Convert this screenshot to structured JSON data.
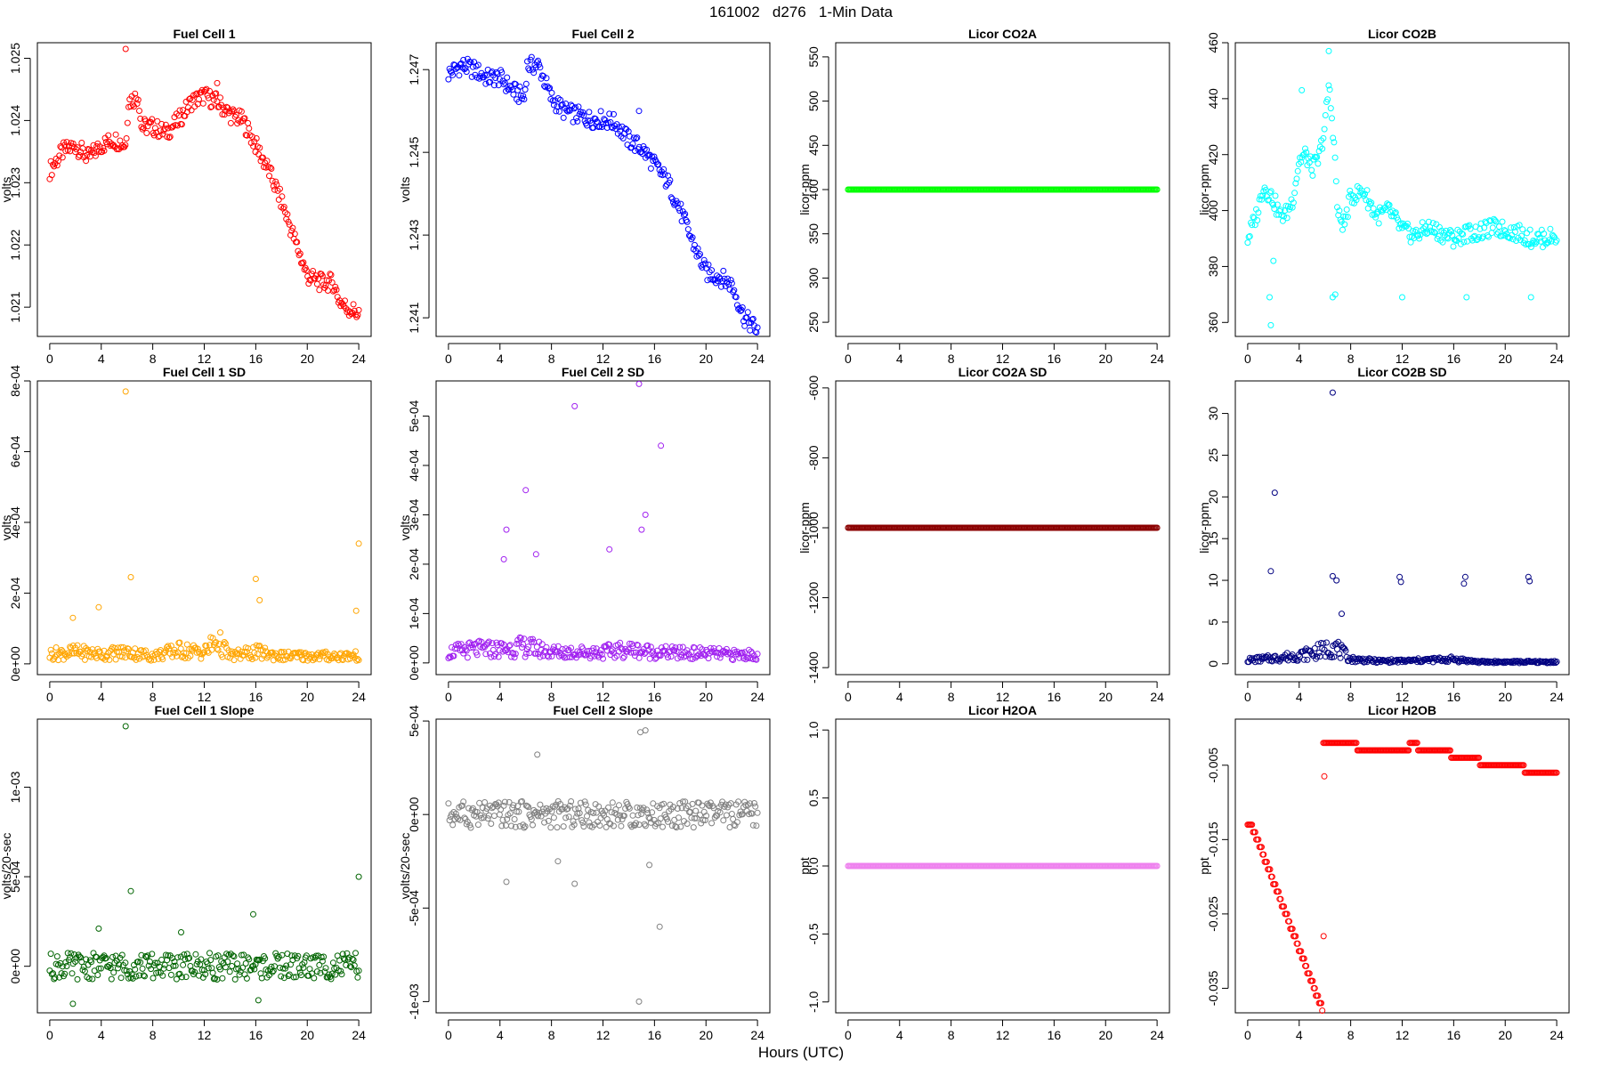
{
  "figure": {
    "title": "161002   d276   1-Min Data",
    "xlabel": "Hours (UTC)"
  },
  "chart_data": [
    {
      "type": "scatter",
      "title": "Fuel Cell 1",
      "xlabel": "",
      "ylabel": "volts",
      "color": "#ff0000",
      "xlim": [
        -0.96,
        24.96
      ],
      "ylim": [
        1.02053,
        1.02525
      ],
      "xticks": [
        0,
        4,
        8,
        12,
        16,
        20,
        24
      ],
      "yticks": [
        1.021,
        1.022,
        1.023,
        1.024,
        1.025
      ],
      "ytick_labels": [
        "1.021",
        "1.022",
        "1.023",
        "1.024",
        "1.025"
      ],
      "series": [
        {
          "x": [
            0,
            1,
            2,
            3,
            4,
            5,
            5.9,
            6.1,
            6.9,
            7.1,
            8,
            9,
            10,
            11,
            12,
            13,
            14,
            15,
            16,
            17,
            18,
            19,
            20,
            21,
            22,
            22.5,
            23,
            24
          ],
          "y": [
            1.0232,
            1.0235,
            1.0236,
            1.0234,
            1.0236,
            1.0237,
            1.0236,
            1.0243,
            1.0244,
            1.0239,
            1.0239,
            1.0238,
            1.024,
            1.0243,
            1.0244,
            1.0243,
            1.0241,
            1.024,
            1.0236,
            1.0232,
            1.0227,
            1.0221,
            1.0215,
            1.0214,
            1.0214,
            1.0211,
            1.021,
            1.0209
          ]
        }
      ],
      "outliers": {
        "x": [
          5.9,
          13
        ],
        "y": [
          1.02515,
          1.0246
        ]
      }
    },
    {
      "type": "scatter",
      "title": "Fuel Cell 2",
      "xlabel": "",
      "ylabel": "volts",
      "color": "#0000ff",
      "xlim": [
        -0.96,
        24.96
      ],
      "ylim": [
        1.24055,
        1.24765
      ],
      "xticks": [
        0,
        4,
        8,
        12,
        16,
        20,
        24
      ],
      "yticks": [
        1.241,
        1.243,
        1.245,
        1.247
      ],
      "ytick_labels": [
        "1.241",
        "1.243",
        "1.245",
        "1.247"
      ],
      "series": [
        {
          "x": [
            0,
            1,
            2,
            3,
            4,
            5,
            5.9,
            6.1,
            7,
            8,
            9,
            10,
            11,
            12,
            13,
            14,
            15,
            16,
            17,
            18,
            19,
            20,
            21,
            22,
            23,
            24
          ],
          "y": [
            1.2469,
            1.2471,
            1.247,
            1.2468,
            1.2468,
            1.2465,
            1.2463,
            1.2471,
            1.2471,
            1.2463,
            1.246,
            1.2459,
            1.2458,
            1.2458,
            1.2457,
            1.2453,
            1.2451,
            1.2447,
            1.2443,
            1.2436,
            1.2428,
            1.2421,
            1.242,
            1.2418,
            1.241,
            1.2407
          ]
        }
      ],
      "outliers": {
        "x": [
          14.8
        ],
        "y": [
          1.246
        ]
      }
    },
    {
      "type": "scatter",
      "title": "Licor CO2A",
      "xlabel": "",
      "ylabel": "licor-ppm",
      "color": "#00ff00",
      "xlim": [
        -0.96,
        24.96
      ],
      "ylim": [
        234,
        566
      ],
      "xticks": [
        0,
        4,
        8,
        12,
        16,
        20,
        24
      ],
      "yticks": [
        250,
        300,
        350,
        400,
        450,
        500,
        550
      ],
      "ytick_labels": [
        "250",
        "300",
        "350",
        "400",
        "450",
        "500",
        "550"
      ],
      "series": [
        {
          "x": [
            0,
            24
          ],
          "y": [
            400,
            400
          ]
        }
      ],
      "outliers": {
        "x": [],
        "y": []
      }
    },
    {
      "type": "scatter",
      "title": "Licor CO2B",
      "xlabel": "",
      "ylabel": "licor-ppm",
      "color": "#00ffff",
      "xlim": [
        -0.96,
        24.96
      ],
      "ylim": [
        355,
        460
      ],
      "xticks": [
        0,
        4,
        8,
        12,
        16,
        20,
        24
      ],
      "yticks": [
        360,
        380,
        400,
        420,
        440,
        460
      ],
      "ytick_labels": [
        "360",
        "380",
        "400",
        "420",
        "440",
        "460"
      ],
      "series": [
        {
          "x": [
            0,
            0.8,
            1.2,
            2,
            2.5,
            3,
            3.5,
            4,
            4.5,
            5,
            5.5,
            6,
            6.3,
            6.7,
            7,
            7.5,
            8,
            9,
            10,
            11,
            12,
            13,
            14,
            15,
            16,
            17,
            18,
            19,
            20,
            21,
            22,
            23,
            24
          ],
          "y": [
            390,
            400,
            409,
            404,
            398,
            399,
            404,
            418,
            420,
            415,
            418,
            430,
            445,
            425,
            398,
            395,
            405,
            407,
            398,
            400,
            393,
            391,
            394,
            392,
            390,
            392,
            392,
            394,
            393,
            392,
            390,
            390,
            391
          ]
        }
      ],
      "outliers": {
        "x": [
          1.7,
          1.8,
          2.0,
          4.2,
          6.3,
          6.6,
          6.8,
          12,
          17,
          22
        ],
        "y": [
          369,
          359,
          382,
          443,
          457,
          369,
          370,
          369,
          369,
          369
        ]
      }
    },
    {
      "type": "scatter",
      "title": "Fuel Cell 1 SD",
      "xlabel": "",
      "ylabel": "volts",
      "color": "#ffa500",
      "xlim": [
        -0.96,
        24.96
      ],
      "ylim": [
        -3.05e-05,
        0.0008
      ],
      "xticks": [
        0,
        4,
        8,
        12,
        16,
        20,
        24
      ],
      "yticks": [
        0,
        0.0002,
        0.0004,
        0.0006,
        0.0008
      ],
      "ytick_labels": [
        "0e+00",
        "2e-04",
        "4e-04",
        "6e-04",
        "8e-04"
      ],
      "series": [
        {
          "x": [
            0,
            2,
            4,
            6,
            8,
            10,
            12,
            13,
            14,
            16,
            18,
            20,
            22,
            24
          ],
          "y": [
            2.5e-05,
            3e-05,
            2.5e-05,
            3e-05,
            2e-05,
            3.5e-05,
            3e-05,
            6e-05,
            2e-05,
            3e-05,
            2e-05,
            2e-05,
            2e-05,
            2e-05
          ]
        }
      ],
      "outliers": {
        "x": [
          5.9,
          6.3,
          16,
          16.3,
          24,
          23.8,
          3.8,
          1.8
        ],
        "y": [
          0.00077,
          0.000245,
          0.00024,
          0.00018,
          0.00034,
          0.00015,
          0.00016,
          0.00013
        ]
      }
    },
    {
      "type": "scatter",
      "title": "Fuel Cell 2 SD",
      "xlabel": "",
      "ylabel": "volts",
      "color": "#a020f0",
      "xlim": [
        -0.96,
        24.96
      ],
      "ylim": [
        -2.37e-05,
        0.0005712
      ],
      "xticks": [
        0,
        4,
        8,
        12,
        16,
        20,
        24
      ],
      "yticks": [
        0,
        0.0001,
        0.0002,
        0.0003,
        0.0004,
        0.0005
      ],
      "ytick_labels": [
        "0e+00",
        "1e-04",
        "2e-04",
        "3e-04",
        "4e-04",
        "5e-04"
      ],
      "series": [
        {
          "x": [
            0,
            2,
            4,
            6,
            8,
            10,
            12,
            14,
            16,
            18,
            20,
            22,
            24
          ],
          "y": [
            2e-05,
            2.5e-05,
            2.5e-05,
            3e-05,
            2e-05,
            2e-05,
            2e-05,
            2.5e-05,
            2e-05,
            1.8e-05,
            1.8e-05,
            1.5e-05,
            1.5e-05
          ]
        }
      ],
      "outliers": {
        "x": [
          14.8,
          9.8,
          16.5,
          6,
          4.5,
          15.3,
          4.3,
          12.5,
          15,
          6.8
        ],
        "y": [
          0.000565,
          0.00052,
          0.00044,
          0.00035,
          0.00027,
          0.0003,
          0.00021,
          0.00023,
          0.00027,
          0.00022
        ]
      }
    },
    {
      "type": "scatter",
      "title": "Licor CO2A SD",
      "xlabel": "",
      "ylabel": "licor-ppm",
      "color": "#8b0000",
      "xlim": [
        -0.96,
        24.96
      ],
      "ylim": [
        -1420,
        -580
      ],
      "xticks": [
        0,
        4,
        8,
        12,
        16,
        20,
        24
      ],
      "yticks": [
        -1400,
        -1200,
        -1000,
        -800,
        -600
      ],
      "ytick_labels": [
        "-1400",
        "-1200",
        "-1000",
        "-800",
        "-600"
      ],
      "series": [
        {
          "x": [
            0,
            24
          ],
          "y": [
            -999.9,
            -999.9
          ]
        }
      ],
      "outliers": {
        "x": [],
        "y": []
      }
    },
    {
      "type": "scatter",
      "title": "Licor CO2B SD",
      "xlabel": "",
      "ylabel": "licor-ppm",
      "color": "#000080",
      "xlim": [
        -0.96,
        24.96
      ],
      "ylim": [
        -1.3,
        33.9
      ],
      "xticks": [
        0,
        4,
        8,
        12,
        16,
        20,
        24
      ],
      "yticks": [
        0,
        5,
        10,
        15,
        20,
        25,
        30
      ],
      "ytick_labels": [
        "0",
        "5",
        "10",
        "15",
        "20",
        "25",
        "30"
      ],
      "series": [
        {
          "x": [
            0,
            2,
            4,
            6,
            6.6,
            8,
            10,
            12,
            14,
            16,
            18,
            20,
            22,
            24
          ],
          "y": [
            0.4,
            0.6,
            0.9,
            1.5,
            2.0,
            0.5,
            0.3,
            0.3,
            0.4,
            0.5,
            0.2,
            0.2,
            0.2,
            0.2
          ]
        }
      ],
      "outliers": {
        "x": [
          6.6,
          2.1,
          1.8,
          6.6,
          6.9,
          11.8,
          11.9,
          16.9,
          16.8,
          21.8,
          21.9,
          7.3
        ],
        "y": [
          32.5,
          20.5,
          11.1,
          10.5,
          10.0,
          10.4,
          9.8,
          10.4,
          9.6,
          10.4,
          9.9,
          6.0
        ]
      }
    },
    {
      "type": "scatter",
      "title": "Fuel Cell 1 Slope",
      "xlabel": "",
      "ylabel": "volts/20-sec",
      "color": "#006400",
      "xlim": [
        -0.96,
        24.96
      ],
      "ylim": [
        -0.00026,
        0.00138
      ],
      "xticks": [
        0,
        4,
        8,
        12,
        16,
        20,
        24
      ],
      "yticks": [
        0,
        0.0005,
        0.001
      ],
      "ytick_labels": [
        "0e+00",
        "5e-04",
        "1e-03"
      ],
      "series": [
        {
          "x": [
            0,
            4,
            8,
            12,
            16,
            20,
            24
          ],
          "y": [
            0,
            0,
            0,
            0,
            0,
            0,
            0
          ]
        }
      ],
      "outliers": {
        "x": [
          5.9,
          6.3,
          24,
          15.8,
          3.8,
          10.2,
          1.8,
          16.2
        ],
        "y": [
          0.00134,
          0.00042,
          0.0005,
          0.00029,
          0.00021,
          0.00019,
          -0.00021,
          -0.00019
        ]
      }
    },
    {
      "type": "scatter",
      "title": "Fuel Cell 2 Slope",
      "xlabel": "",
      "ylabel": "volts/20-sec",
      "color": "#808080",
      "xlim": [
        -0.96,
        24.96
      ],
      "ylim": [
        -0.00106,
        0.00051
      ],
      "xticks": [
        0,
        4,
        8,
        12,
        16,
        20,
        24
      ],
      "yticks": [
        -0.001,
        -0.0005,
        0,
        0.0005
      ],
      "ytick_labels": [
        "-1e-03",
        "-5e-04",
        "0e+00",
        "5e-04"
      ],
      "series": [
        {
          "x": [
            0,
            4,
            8,
            12,
            16,
            20,
            24
          ],
          "y": [
            0,
            0,
            0,
            0,
            0,
            0,
            0
          ]
        }
      ],
      "outliers": {
        "x": [
          14.8,
          15.3,
          14.9,
          16.4,
          15.6,
          6.9,
          4.5,
          9.8,
          8.5
        ],
        "y": [
          -0.001,
          0.00045,
          0.00044,
          -0.0006,
          -0.00027,
          0.00032,
          -0.00036,
          -0.00037,
          -0.00025
        ]
      }
    },
    {
      "type": "scatter",
      "title": "Licor H2OA",
      "xlabel": "",
      "ylabel": "ppt",
      "color": "#ee82ee",
      "xlim": [
        -0.96,
        24.96
      ],
      "ylim": [
        -1.08,
        1.08
      ],
      "xticks": [
        0,
        4,
        8,
        12,
        16,
        20,
        24
      ],
      "yticks": [
        -1.0,
        -0.5,
        0.0,
        0.5,
        1.0
      ],
      "ytick_labels": [
        "-1.0",
        "-0.5",
        "0.0",
        "0.5",
        "1.0"
      ],
      "series": [
        {
          "x": [
            0,
            24
          ],
          "y": [
            0,
            0
          ]
        }
      ],
      "outliers": {
        "x": [],
        "y": []
      }
    },
    {
      "type": "scatter",
      "title": "Licor H2OB",
      "xlabel": "",
      "ylabel": "ppt",
      "color": "#ff0000",
      "xlim": [
        -0.96,
        24.96
      ],
      "ylim": [
        -0.0383,
        0.0012
      ],
      "xticks": [
        0,
        4,
        8,
        12,
        16,
        20,
        24
      ],
      "yticks": [
        -0.035,
        -0.025,
        -0.015,
        -0.005
      ],
      "ytick_labels": [
        "-0.035",
        "-0.025",
        "-0.015",
        "-0.005"
      ],
      "series": [
        {
          "x": [
            0,
            0.3,
            5.85,
            5.9,
            6.1,
            8.5,
            16,
            18,
            20,
            24
          ],
          "y": [
            -0.013,
            -0.013,
            -0.038,
            -0.002,
            -0.002,
            -0.003,
            -0.004,
            -0.005,
            -0.006,
            -0.006
          ]
        }
      ],
      "outliers": {
        "x": [
          5.9,
          5.95
        ],
        "y": [
          -0.028,
          -0.0065
        ]
      }
    }
  ]
}
